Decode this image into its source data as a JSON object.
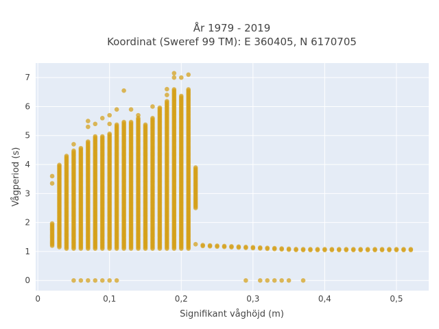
{
  "chart_data": {
    "type": "scatter",
    "title": "År 1979 - 2019",
    "subtitle": "Koordinat (Sweref 99 TM): E 360405, N 6170705",
    "xlabel": "Signifikant våghöjd (m)",
    "ylabel": "Vågperiod (s)",
    "xlim": [
      -0.003,
      0.545
    ],
    "ylim": [
      -0.35,
      7.5
    ],
    "xticks": [
      0,
      0.1,
      0.2,
      0.3,
      0.4,
      0.5
    ],
    "xtick_labels": [
      "0",
      "0,1",
      "0,2",
      "0,3",
      "0,4",
      "0,5"
    ],
    "yticks": [
      0,
      1,
      2,
      3,
      4,
      5,
      6,
      7
    ],
    "ytick_labels": [
      "0",
      "1",
      "2",
      "3",
      "4",
      "5",
      "6",
      "7"
    ],
    "grid": true,
    "colors": {
      "marker": "#D4A017",
      "background": "#E5ECF6",
      "grid": "#ffffff",
      "paper": "#ffffff"
    },
    "columns": [
      {
        "x": 0.02,
        "ymin": 1.2,
        "ymax": 2.0,
        "extra": [
          3.35,
          3.6
        ]
      },
      {
        "x": 0.03,
        "ymin": 1.15,
        "ymax": 4.0
      },
      {
        "x": 0.04,
        "ymin": 1.1,
        "ymax": 4.3
      },
      {
        "x": 0.05,
        "ymin": 1.1,
        "ymax": 4.5,
        "extra": [
          0.0,
          4.7
        ]
      },
      {
        "x": 0.06,
        "ymin": 1.1,
        "ymax": 4.6,
        "extra": [
          0.0
        ]
      },
      {
        "x": 0.07,
        "ymin": 1.1,
        "ymax": 4.8,
        "extra": [
          0.0,
          5.3,
          5.5
        ]
      },
      {
        "x": 0.08,
        "ymin": 1.1,
        "ymax": 5.0,
        "extra": [
          0.0,
          5.4
        ]
      },
      {
        "x": 0.09,
        "ymin": 1.1,
        "ymax": 5.0,
        "extra": [
          0.0,
          5.6
        ]
      },
      {
        "x": 0.1,
        "ymin": 1.1,
        "ymax": 5.1,
        "extra": [
          0.0,
          5.4,
          5.7
        ]
      },
      {
        "x": 0.11,
        "ymin": 1.1,
        "ymax": 5.4,
        "extra": [
          0.0,
          5.9
        ]
      },
      {
        "x": 0.12,
        "ymin": 1.1,
        "ymax": 5.5,
        "extra": [
          6.55
        ]
      },
      {
        "x": 0.13,
        "ymin": 1.1,
        "ymax": 5.5,
        "extra": [
          5.9
        ]
      },
      {
        "x": 0.14,
        "ymin": 1.1,
        "ymax": 5.6,
        "extra": [
          5.7
        ]
      },
      {
        "x": 0.15,
        "ymin": 1.1,
        "ymax": 5.4
      },
      {
        "x": 0.16,
        "ymin": 1.1,
        "ymax": 5.6,
        "extra": [
          6.0
        ]
      },
      {
        "x": 0.17,
        "ymin": 1.1,
        "ymax": 6.0
      },
      {
        "x": 0.18,
        "ymin": 1.1,
        "ymax": 6.2,
        "extra": [
          6.4,
          6.6
        ]
      },
      {
        "x": 0.19,
        "ymin": 1.1,
        "ymax": 6.6,
        "extra": [
          7.0,
          7.15
        ]
      },
      {
        "x": 0.2,
        "ymin": 1.1,
        "ymax": 6.4,
        "extra": [
          7.0
        ]
      },
      {
        "x": 0.21,
        "ymin": 1.1,
        "ymax": 6.6,
        "extra": [
          7.1
        ]
      },
      {
        "x": 0.22,
        "ymin": 2.5,
        "ymax": 3.9,
        "extra": [
          1.25
        ]
      }
    ],
    "base_band": {
      "x_from": 0.23,
      "x_to": 0.52,
      "x_step": 0.01,
      "y_from": 1.22,
      "y_to": 1.08
    },
    "zero_points_x": [
      0.29,
      0.31,
      0.32,
      0.33,
      0.34,
      0.35,
      0.37
    ]
  }
}
